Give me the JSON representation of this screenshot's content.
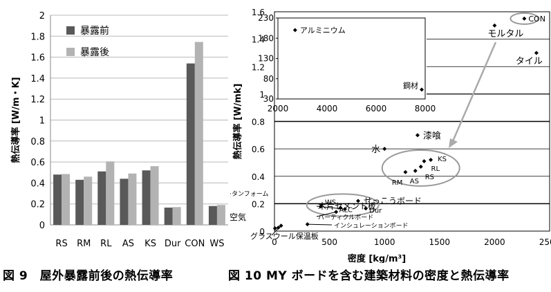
{
  "captions": {
    "fig9": "図 9　屋外暴露前後の熱伝導率",
    "fig10": "図 10 MY ボードを含む建築材料の密度と熱伝導率"
  },
  "chart_data": [
    {
      "type": "bar",
      "ylabel": "熱伝導率 [W/m・K]",
      "ylim": [
        0,
        2
      ],
      "yticks": [
        "0",
        "0.2",
        "0.4",
        "0.6",
        "0.8",
        "1",
        "1.2",
        "1.4",
        "1.6",
        "1.8",
        "2"
      ],
      "grid": true,
      "legend_position": "top-left",
      "categories": [
        "RS",
        "RM",
        "RL",
        "AS",
        "KS",
        "Dur",
        "CON",
        "WS"
      ],
      "series": [
        {
          "name": "暴露前",
          "color": "#595959",
          "values": [
            0.48,
            0.43,
            0.51,
            0.44,
            0.52,
            0.165,
            1.54,
            0.18
          ]
        },
        {
          "name": "暴露後",
          "color": "#b3b3b3",
          "values": [
            0.485,
            0.46,
            0.605,
            0.49,
            0.56,
            0.17,
            1.745,
            0.19
          ]
        }
      ]
    },
    {
      "type": "scatter",
      "xlabel": "密度 [kg/m³]",
      "ylabel": "熱伝導率 [W/mk]",
      "xlim": [
        0,
        2500
      ],
      "ylim": [
        0,
        1.6
      ],
      "xticks": [
        "0",
        "500",
        "1000",
        "1500",
        "2000",
        "2500"
      ],
      "yticks": [
        "0",
        "0.2",
        "0.4",
        "0.6",
        "0.8",
        "1",
        "1.2",
        "1.4",
        "1.6"
      ],
      "points": [
        {
          "label": "CON",
          "x": 2270,
          "y": 1.55
        },
        {
          "label": "モルタル",
          "x": 2000,
          "y": 1.5
        },
        {
          "label": "タイル",
          "x": 2380,
          "y": 1.3
        },
        {
          "label": "漆喰",
          "x": 1300,
          "y": 0.7
        },
        {
          "label": "水",
          "x": 1000,
          "y": 0.6
        },
        {
          "label": "KS",
          "x": 1420,
          "y": 0.52
        },
        {
          "label": "RL",
          "x": 1360,
          "y": 0.51
        },
        {
          "label": "RS",
          "x": 1330,
          "y": 0.47
        },
        {
          "label": "AS",
          "x": 1280,
          "y": 0.44
        },
        {
          "label": "RM",
          "x": 1190,
          "y": 0.43
        },
        {
          "label": "せっこうボード",
          "x": 760,
          "y": 0.22
        },
        {
          "label": "WS",
          "x": 420,
          "y": 0.18
        },
        {
          "label": "ALC",
          "x": 600,
          "y": 0.17
        },
        {
          "label": "Dur",
          "x": 830,
          "y": 0.165
        },
        {
          "label": "木片セメント板",
          "x": 640,
          "y": 0.16
        },
        {
          "label": "パーティクルボード",
          "x": 560,
          "y": 0.14
        },
        {
          "label": "インシュレーションボード",
          "x": 300,
          "y": 0.05
        },
        {
          "label": "硬質ウレタンフォーム",
          "x": 35,
          "y": 0.025
        },
        {
          "label": "空気",
          "x": 5,
          "y": 0.02
        },
        {
          "label": "グラスウール保温板",
          "x": 60,
          "y": 0.04
        }
      ],
      "inset": {
        "xlim": [
          2000,
          8000
        ],
        "ylim": [
          30,
          230
        ],
        "xticks": [
          "2000",
          "4000",
          "6000",
          "8000"
        ],
        "yticks": [
          "30",
          "80",
          "130",
          "180",
          "230"
        ],
        "points": [
          {
            "label": "アルミニウム",
            "x": 2700,
            "y": 200
          },
          {
            "label": "鋼材",
            "x": 7860,
            "y": 53
          }
        ]
      }
    }
  ]
}
